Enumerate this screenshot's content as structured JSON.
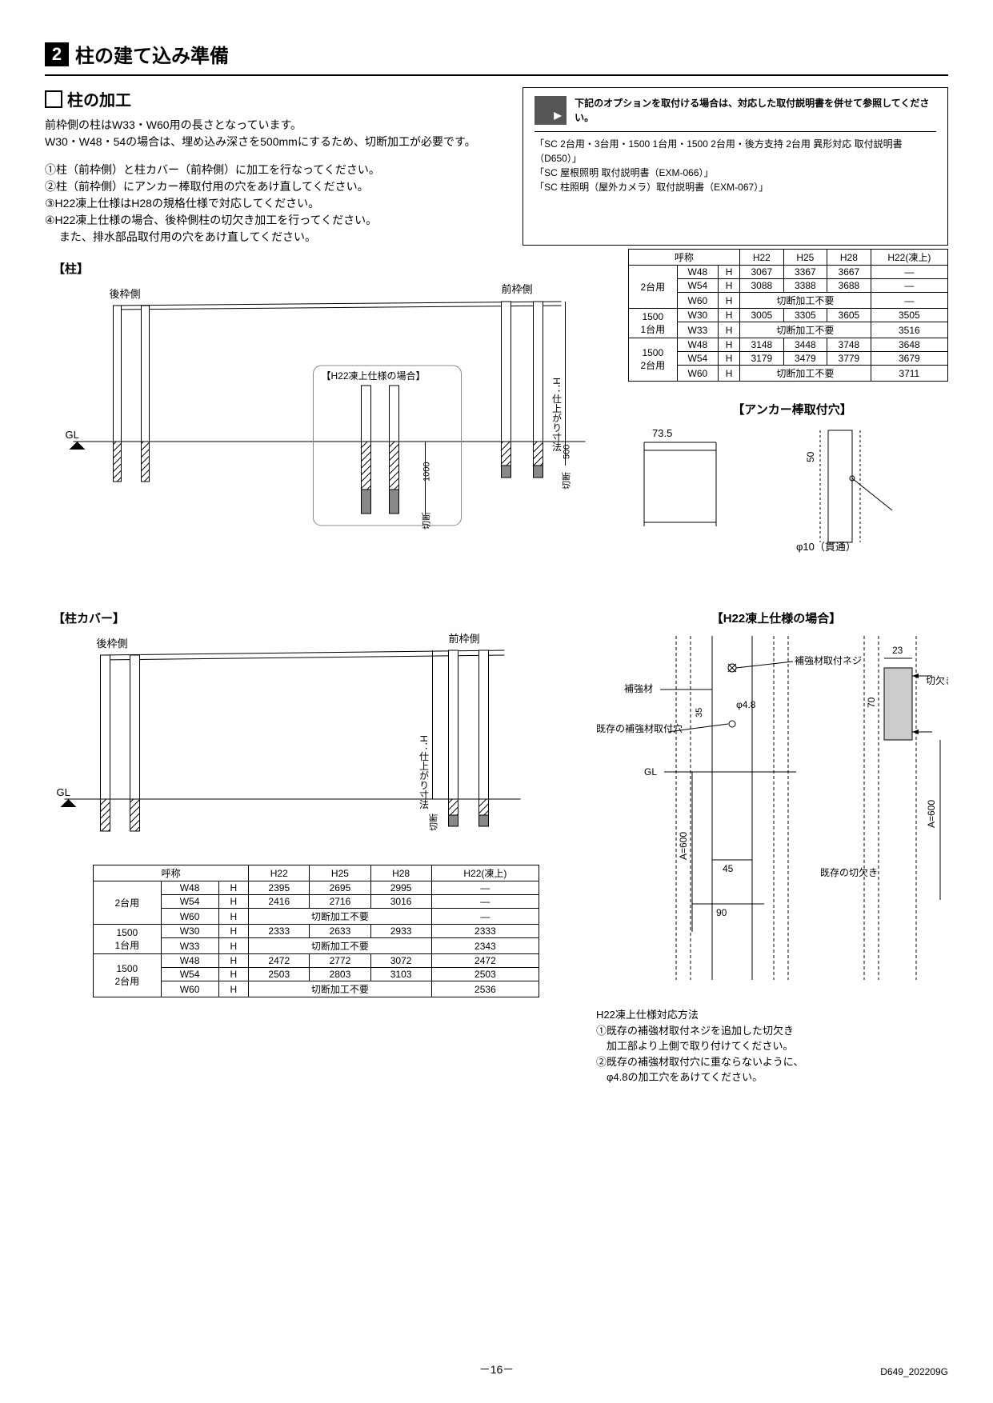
{
  "section": {
    "number": "2",
    "title": "柱の建て込み準備"
  },
  "subsection": {
    "title": "柱の加工"
  },
  "body1": "前枠側の柱はW33・W60用の長さとなっています。",
  "body2": "W30・W48・54の場合は、埋め込み深さを500mmにするため、切断加工が必要です。",
  "list1": "①柱（前枠側）と柱カバー（前枠側）に加工を行なってください。",
  "list2": "②柱（前枠側）にアンカー棒取付用の穴をあけ直してください。",
  "list3": "③H22凍上仕様はH28の規格仕様で対応してください。",
  "list4": "④H22凍上仕様の場合、後枠側柱の切欠き加工を行ってください。",
  "list5": "　 また、排水部品取付用の穴をあけ直してください。",
  "option_note": {
    "head": "下記のオプションを取付ける場合は、対応した取付説明書を併せて参照してください。",
    "l1": "「SC 2台用・3台用・1500 1台用・1500 2台用・後方支持 2台用 異形対応 取付説明書（D650）」",
    "l2": "「SC 屋根照明 取付説明書（EXM-066）」",
    "l3": "「SC 柱照明（屋外カメラ）取付説明書（EXM-067）」"
  },
  "labels": {
    "pillar": "【柱】",
    "anchor": "【アンカー棒取付穴】",
    "cover": "【柱カバー】",
    "h22": "【H22凍上仕様の場合】",
    "h22_overlay": "【H22凍上仕様の場合】",
    "rear": "後枠側",
    "front": "前枠側",
    "gl": "GL",
    "h_dim": "H：仕上がり寸法",
    "cut": "切断",
    "d1000": "1000",
    "d500": "500",
    "d73_5": "73.5",
    "d50": "50",
    "phi10": "φ10（貫通）",
    "d23": "23",
    "d70": "70",
    "d35": "35",
    "d45": "45",
    "d90": "90",
    "dA600": "A=600",
    "phi48": "φ4.8",
    "hokyo": "補強材",
    "hokyo_screw": "補強材取付ネジ",
    "existing_hole": "既存の\n補強材取付穴",
    "kirikaki": "切欠き\n加工",
    "existing_kirikaki": "既存の\n切欠き"
  },
  "table1": {
    "headers": [
      "呼称",
      "",
      "",
      "H22",
      "H25",
      "H28",
      "H22(凍上)"
    ],
    "groups": [
      {
        "span": 3,
        "label": "2台用",
        "rows": [
          [
            "W48",
            "H",
            "3067",
            "3367",
            "3667",
            "—"
          ],
          [
            "W54",
            "H",
            "3088",
            "3388",
            "3688",
            "—"
          ],
          [
            "W60",
            "H",
            "切断加工不要",
            "",
            "",
            "—"
          ]
        ]
      },
      {
        "span": 2,
        "label": "1500\n1台用",
        "rows": [
          [
            "W30",
            "H",
            "3005",
            "3305",
            "3605",
            "3505"
          ],
          [
            "W33",
            "H",
            "切断加工不要",
            "",
            "",
            "3516"
          ]
        ]
      },
      {
        "span": 3,
        "label": "1500\n2台用",
        "rows": [
          [
            "W48",
            "H",
            "3148",
            "3448",
            "3748",
            "3648"
          ],
          [
            "W54",
            "H",
            "3179",
            "3479",
            "3779",
            "3679"
          ],
          [
            "W60",
            "H",
            "切断加工不要",
            "",
            "",
            "3711"
          ]
        ]
      }
    ]
  },
  "table2": {
    "headers": [
      "呼称",
      "",
      "",
      "H22",
      "H25",
      "H28",
      "H22(凍上)"
    ],
    "groups": [
      {
        "span": 3,
        "label": "2台用",
        "rows": [
          [
            "W48",
            "H",
            "2395",
            "2695",
            "2995",
            "—"
          ],
          [
            "W54",
            "H",
            "2416",
            "2716",
            "3016",
            "—"
          ],
          [
            "W60",
            "H",
            "切断加工不要",
            "",
            "",
            "—"
          ]
        ]
      },
      {
        "span": 2,
        "label": "1500\n1台用",
        "rows": [
          [
            "W30",
            "H",
            "2333",
            "2633",
            "2933",
            "2333"
          ],
          [
            "W33",
            "H",
            "切断加工不要",
            "",
            "",
            "2343"
          ]
        ]
      },
      {
        "span": 3,
        "label": "1500\n2台用",
        "rows": [
          [
            "W48",
            "H",
            "2472",
            "2772",
            "3072",
            "2472"
          ],
          [
            "W54",
            "H",
            "2503",
            "2803",
            "3103",
            "2503"
          ],
          [
            "W60",
            "H",
            "切断加工不要",
            "",
            "",
            "2536"
          ]
        ]
      }
    ]
  },
  "h22_note": {
    "title": "H22凍上仕様対応方法",
    "l1": "①既存の補強材取付ネジを追加した切欠き",
    "l1b": "　加工部より上側で取り付けてください。",
    "l2": "②既存の補強材取付穴に重ならないように、",
    "l2b": "　φ4.8の加工穴をあけてください。"
  },
  "page": "－16－",
  "doc_id": "D649_202209G"
}
